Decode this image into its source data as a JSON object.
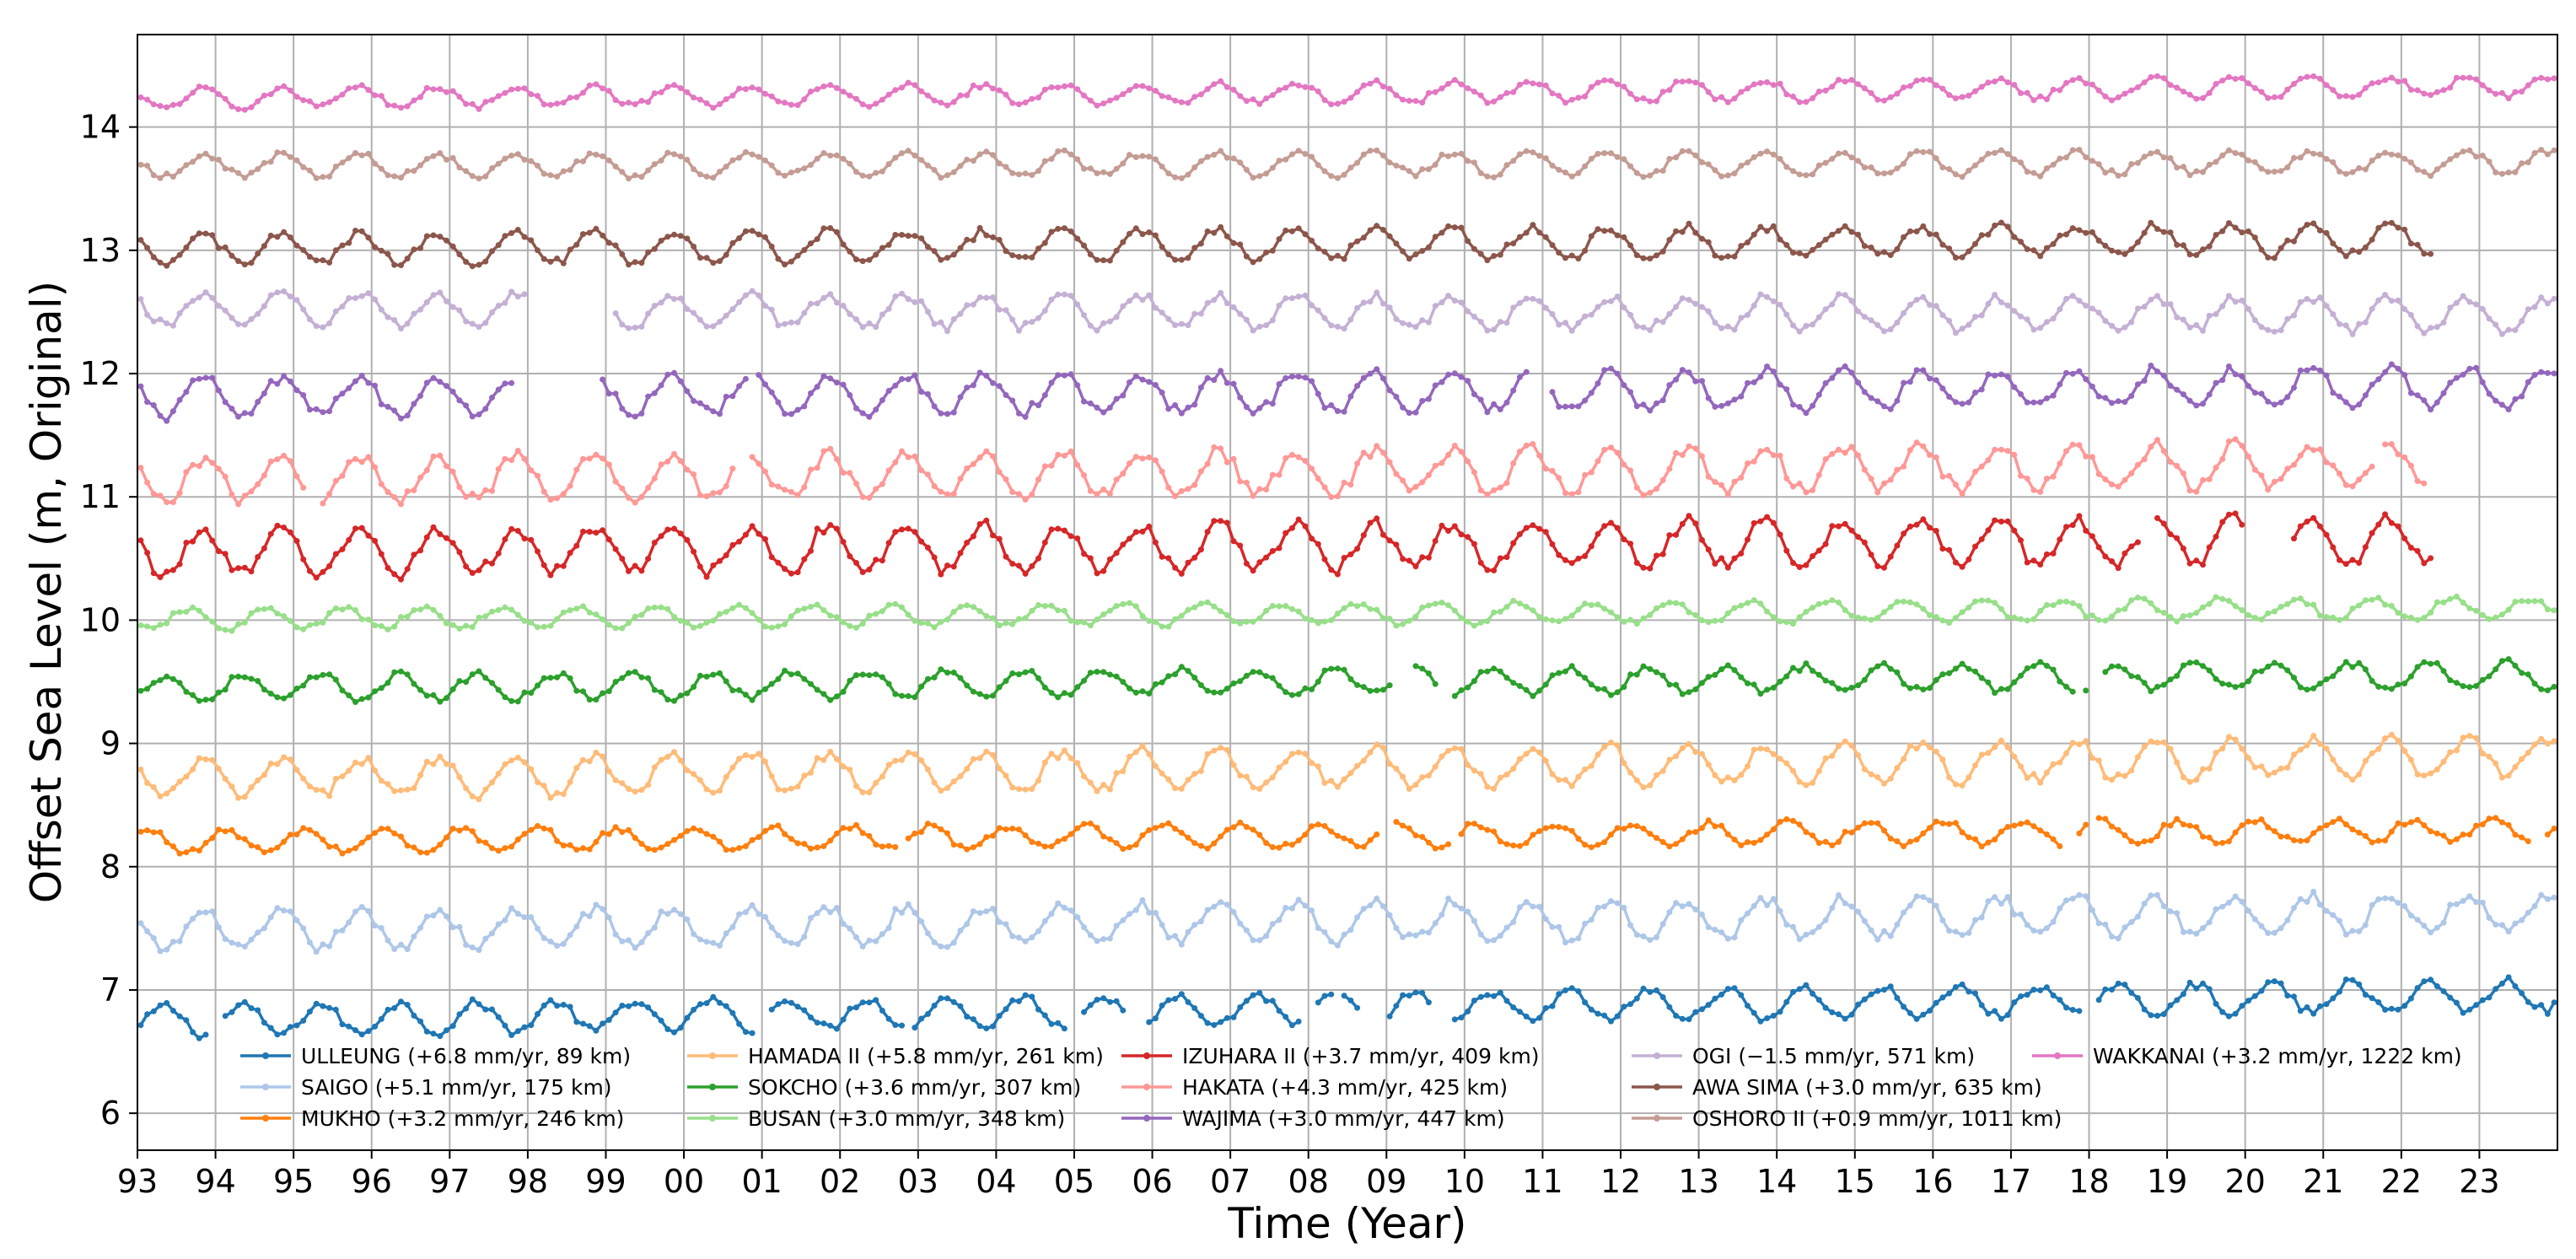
{
  "chart_data": {
    "type": "line",
    "title": "",
    "xlabel": "Time (Year)",
    "ylabel": "Offset Sea Level (m, Original)",
    "xlim": [
      1993.0,
      2024.0
    ],
    "ylim": [
      5.7,
      14.75
    ],
    "grid": true,
    "legend_position": "lower-center",
    "x_ticks": [
      {
        "value": 1993,
        "label": "93"
      },
      {
        "value": 1994,
        "label": "94"
      },
      {
        "value": 1995,
        "label": "95"
      },
      {
        "value": 1996,
        "label": "96"
      },
      {
        "value": 1997,
        "label": "97"
      },
      {
        "value": 1998,
        "label": "98"
      },
      {
        "value": 1999,
        "label": "99"
      },
      {
        "value": 2000,
        "label": "00"
      },
      {
        "value": 2001,
        "label": "01"
      },
      {
        "value": 2002,
        "label": "02"
      },
      {
        "value": 2003,
        "label": "03"
      },
      {
        "value": 2004,
        "label": "04"
      },
      {
        "value": 2005,
        "label": "05"
      },
      {
        "value": 2006,
        "label": "06"
      },
      {
        "value": 2007,
        "label": "07"
      },
      {
        "value": 2008,
        "label": "08"
      },
      {
        "value": 2009,
        "label": "09"
      },
      {
        "value": 2010,
        "label": "10"
      },
      {
        "value": 2011,
        "label": "11"
      },
      {
        "value": 2012,
        "label": "12"
      },
      {
        "value": 2013,
        "label": "13"
      },
      {
        "value": 2014,
        "label": "14"
      },
      {
        "value": 2015,
        "label": "15"
      },
      {
        "value": 2016,
        "label": "16"
      },
      {
        "value": 2017,
        "label": "17"
      },
      {
        "value": 2018,
        "label": "18"
      },
      {
        "value": 2019,
        "label": "19"
      },
      {
        "value": 2020,
        "label": "20"
      },
      {
        "value": 2021,
        "label": "21"
      },
      {
        "value": 2022,
        "label": "22"
      },
      {
        "value": 2023,
        "label": "23"
      }
    ],
    "y_ticks": [
      {
        "value": 6,
        "label": "6"
      },
      {
        "value": 7,
        "label": "7"
      },
      {
        "value": 8,
        "label": "8"
      },
      {
        "value": 9,
        "label": "9"
      },
      {
        "value": 10,
        "label": "10"
      },
      {
        "value": 11,
        "label": "11"
      },
      {
        "value": 12,
        "label": "12"
      },
      {
        "value": 13,
        "label": "13"
      },
      {
        "value": 14,
        "label": "14"
      }
    ],
    "series": [
      {
        "name": "ULLEUNG (+6.8 mm/yr, 89 km)",
        "color": "#1f77b4",
        "base": 6.85,
        "amplitude": 0.12,
        "trend_m_per_yr": 0.0068,
        "phase": 0.1,
        "gaps": [
          [
            1993.9,
            1994.05
          ],
          [
            2000.95,
            2001.1
          ],
          [
            2002.8,
            2002.95
          ],
          [
            2004.95,
            2005.05
          ],
          [
            2005.7,
            2005.95
          ],
          [
            2007.95,
            2008.05
          ],
          [
            2008.3,
            2008.45
          ],
          [
            2008.7,
            2009.0
          ],
          [
            2009.6,
            2009.8
          ],
          [
            2017.9,
            2018.1
          ]
        ]
      },
      {
        "name": "SAIGO (+5.1 mm/yr, 175 km)",
        "color": "#aec7e8",
        "base": 7.55,
        "amplitude": 0.15,
        "trend_m_per_yr": 0.0051,
        "phase": 0.6,
        "gaps": []
      },
      {
        "name": "MUKHO (+3.2 mm/yr, 246 km)",
        "color": "#ff7f0e",
        "base": 8.25,
        "amplitude": 0.09,
        "trend_m_per_yr": 0.0032,
        "phase": 0.9,
        "gaps": [
          [
            2002.75,
            2002.85
          ],
          [
            2008.9,
            2009.05
          ],
          [
            2009.8,
            2009.95
          ],
          [
            2017.65,
            2017.8
          ],
          [
            2018.0,
            2018.1
          ],
          [
            2023.7,
            2023.8
          ]
        ]
      },
      {
        "name": "HAMADA II (+5.8 mm/yr, 261 km)",
        "color": "#ffbb78",
        "base": 8.8,
        "amplitude": 0.15,
        "trend_m_per_yr": 0.0058,
        "phase": 0.6,
        "gaps": []
      },
      {
        "name": "SOKCHO (+3.6 mm/yr, 307 km)",
        "color": "#2ca02c",
        "base": 9.5,
        "amplitude": 0.1,
        "trend_m_per_yr": 0.0036,
        "phase": 0.1,
        "gaps": [
          [
            2009.1,
            2009.35
          ],
          [
            2009.7,
            2009.85
          ],
          [
            2017.8,
            2017.95
          ],
          [
            2018.0,
            2018.2
          ]
        ]
      },
      {
        "name": "BUSAN (+3.0 mm/yr, 348 km)",
        "color": "#98df8a",
        "base": 10.05,
        "amplitude": 0.08,
        "trend_m_per_yr": 0.003,
        "phase": 0.4,
        "gaps": []
      },
      {
        "name": "IZUHARA II (+3.7 mm/yr, 409 km)",
        "color": "#d62728",
        "base": 10.6,
        "amplitude": 0.18,
        "trend_m_per_yr": 0.0037,
        "phase": 0.6,
        "gaps": [
          [
            2018.65,
            2018.8
          ],
          [
            2020.0,
            2020.6
          ],
          [
            2022.4,
            2024.0
          ]
        ]
      },
      {
        "name": "HAKATA (+4.3 mm/yr, 425 km)",
        "color": "#ff9896",
        "base": 11.2,
        "amplitude": 0.17,
        "trend_m_per_yr": 0.0043,
        "phase": 0.6,
        "gaps": [
          [
            1995.2,
            1995.3
          ],
          [
            2000.7,
            2000.85
          ],
          [
            2021.65,
            2021.75
          ],
          [
            2022.3,
            2024.0
          ]
        ]
      },
      {
        "name": "WAJIMA (+3.0 mm/yr, 447 km)",
        "color": "#9467bd",
        "base": 11.85,
        "amplitude": 0.15,
        "trend_m_per_yr": 0.003,
        "phase": 0.6,
        "gaps": [
          [
            1997.85,
            1998.95
          ],
          [
            2000.8,
            2000.95
          ],
          [
            2010.85,
            2011.1
          ]
        ]
      },
      {
        "name": "OGI (−1.5 mm/yr, 571 km)",
        "color": "#c5b0d5",
        "base": 12.5,
        "amplitude": 0.13,
        "trend_m_per_yr": -0.0015,
        "phase": 0.6,
        "gaps": [
          [
            1998.0,
            1999.05
          ]
        ]
      },
      {
        "name": "AWA SIMA (+3.0 mm/yr, 635 km)",
        "color": "#8c564b",
        "base": 13.05,
        "amplitude": 0.12,
        "trend_m_per_yr": 0.003,
        "phase": 0.6,
        "gaps": [
          [
            2022.45,
            2024.0
          ]
        ]
      },
      {
        "name": "OSHORO II (+0.9 mm/yr, 1011 km)",
        "color": "#c49c94",
        "base": 13.7,
        "amplitude": 0.09,
        "trend_m_per_yr": 0.0009,
        "phase": 0.6,
        "gaps": []
      },
      {
        "name": "WAKKANAI (+3.2 mm/yr, 1222 km)",
        "color": "#e377c2",
        "base": 14.28,
        "amplitude": 0.08,
        "trend_m_per_yr": 0.0032,
        "phase": 0.6,
        "gaps": []
      }
    ]
  }
}
